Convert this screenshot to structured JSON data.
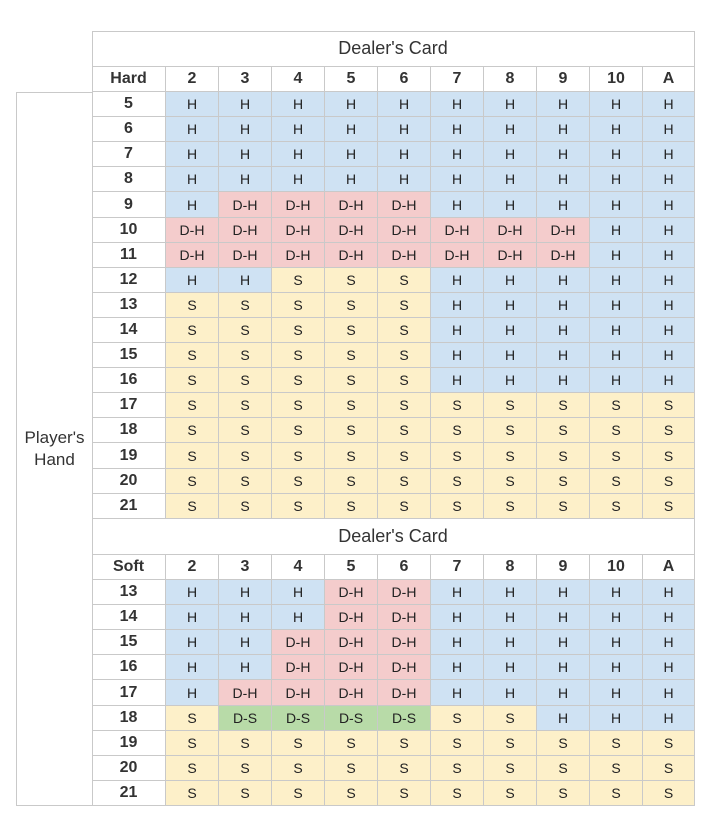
{
  "hard_table": {
    "title": "Dealer's Card",
    "corner_label": "Hard",
    "dealer_cards": [
      "2",
      "3",
      "4",
      "5",
      "6",
      "7",
      "8",
      "9",
      "10",
      "A"
    ],
    "rows": [
      {
        "hand": "5",
        "actions": [
          "H",
          "H",
          "H",
          "H",
          "H",
          "H",
          "H",
          "H",
          "H",
          "H"
        ]
      },
      {
        "hand": "6",
        "actions": [
          "H",
          "H",
          "H",
          "H",
          "H",
          "H",
          "H",
          "H",
          "H",
          "H"
        ]
      },
      {
        "hand": "7",
        "actions": [
          "H",
          "H",
          "H",
          "H",
          "H",
          "H",
          "H",
          "H",
          "H",
          "H"
        ]
      },
      {
        "hand": "8",
        "actions": [
          "H",
          "H",
          "H",
          "H",
          "H",
          "H",
          "H",
          "H",
          "H",
          "H"
        ]
      },
      {
        "hand": "9",
        "actions": [
          "H",
          "D-H",
          "D-H",
          "D-H",
          "D-H",
          "H",
          "H",
          "H",
          "H",
          "H"
        ]
      },
      {
        "hand": "10",
        "actions": [
          "D-H",
          "D-H",
          "D-H",
          "D-H",
          "D-H",
          "D-H",
          "D-H",
          "D-H",
          "H",
          "H"
        ]
      },
      {
        "hand": "11",
        "actions": [
          "D-H",
          "D-H",
          "D-H",
          "D-H",
          "D-H",
          "D-H",
          "D-H",
          "D-H",
          "H",
          "H"
        ]
      },
      {
        "hand": "12",
        "actions": [
          "H",
          "H",
          "S",
          "S",
          "S",
          "H",
          "H",
          "H",
          "H",
          "H"
        ]
      },
      {
        "hand": "13",
        "actions": [
          "S",
          "S",
          "S",
          "S",
          "S",
          "H",
          "H",
          "H",
          "H",
          "H"
        ]
      },
      {
        "hand": "14",
        "actions": [
          "S",
          "S",
          "S",
          "S",
          "S",
          "H",
          "H",
          "H",
          "H",
          "H"
        ]
      },
      {
        "hand": "15",
        "actions": [
          "S",
          "S",
          "S",
          "S",
          "S",
          "H",
          "H",
          "H",
          "H",
          "H"
        ]
      },
      {
        "hand": "16",
        "actions": [
          "S",
          "S",
          "S",
          "S",
          "S",
          "H",
          "H",
          "H",
          "H",
          "H"
        ]
      },
      {
        "hand": "17",
        "actions": [
          "S",
          "S",
          "S",
          "S",
          "S",
          "S",
          "S",
          "S",
          "S",
          "S"
        ]
      },
      {
        "hand": "18",
        "actions": [
          "S",
          "S",
          "S",
          "S",
          "S",
          "S",
          "S",
          "S",
          "S",
          "S"
        ]
      },
      {
        "hand": "19",
        "actions": [
          "S",
          "S",
          "S",
          "S",
          "S",
          "S",
          "S",
          "S",
          "S",
          "S"
        ]
      },
      {
        "hand": "20",
        "actions": [
          "S",
          "S",
          "S",
          "S",
          "S",
          "S",
          "S",
          "S",
          "S",
          "S"
        ]
      },
      {
        "hand": "21",
        "actions": [
          "S",
          "S",
          "S",
          "S",
          "S",
          "S",
          "S",
          "S",
          "S",
          "S"
        ]
      }
    ]
  },
  "soft_table": {
    "title": "Dealer's Card",
    "corner_label": "Soft",
    "dealer_cards": [
      "2",
      "3",
      "4",
      "5",
      "6",
      "7",
      "8",
      "9",
      "10",
      "A"
    ],
    "rows": [
      {
        "hand": "13",
        "actions": [
          "H",
          "H",
          "H",
          "D-H",
          "D-H",
          "H",
          "H",
          "H",
          "H",
          "H"
        ]
      },
      {
        "hand": "14",
        "actions": [
          "H",
          "H",
          "H",
          "D-H",
          "D-H",
          "H",
          "H",
          "H",
          "H",
          "H"
        ]
      },
      {
        "hand": "15",
        "actions": [
          "H",
          "H",
          "D-H",
          "D-H",
          "D-H",
          "H",
          "H",
          "H",
          "H",
          "H"
        ]
      },
      {
        "hand": "16",
        "actions": [
          "H",
          "H",
          "D-H",
          "D-H",
          "D-H",
          "H",
          "H",
          "H",
          "H",
          "H"
        ]
      },
      {
        "hand": "17",
        "actions": [
          "H",
          "D-H",
          "D-H",
          "D-H",
          "D-H",
          "H",
          "H",
          "H",
          "H",
          "H"
        ]
      },
      {
        "hand": "18",
        "actions": [
          "S",
          "D-S",
          "D-S",
          "D-S",
          "D-S",
          "S",
          "S",
          "H",
          "H",
          "H"
        ]
      },
      {
        "hand": "19",
        "actions": [
          "S",
          "S",
          "S",
          "S",
          "S",
          "S",
          "S",
          "S",
          "S",
          "S"
        ]
      },
      {
        "hand": "20",
        "actions": [
          "S",
          "S",
          "S",
          "S",
          "S",
          "S",
          "S",
          "S",
          "S",
          "S"
        ]
      },
      {
        "hand": "21",
        "actions": [
          "S",
          "S",
          "S",
          "S",
          "S",
          "S",
          "S",
          "S",
          "S",
          "S"
        ]
      }
    ]
  },
  "side_label": {
    "line1": "Player's",
    "line2": "Hand"
  },
  "colors": {
    "H": "#cfe2f3",
    "S": "#fdf0c9",
    "D-H": "#f4cccc",
    "D-S": "#b8dba8"
  }
}
